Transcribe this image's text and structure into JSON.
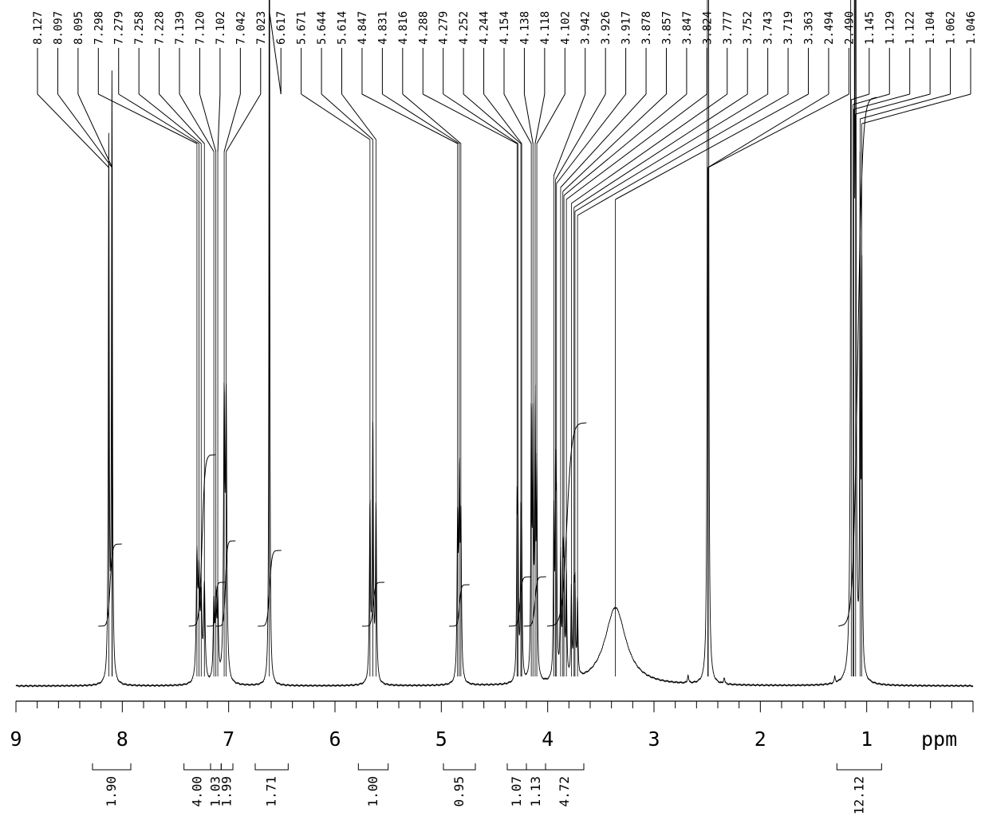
{
  "chart_data": {
    "type": "line",
    "x_unit_label": "ppm",
    "x_axis": {
      "range": [
        9.0,
        0.0
      ],
      "reversed": true,
      "major_ticks": [
        9,
        8,
        7,
        6,
        5,
        4,
        3,
        2,
        1
      ],
      "minor_step": 0.2
    },
    "grid": false,
    "peak_labels": [
      "8.127",
      "8.097",
      "8.095",
      "7.298",
      "7.279",
      "7.258",
      "7.228",
      "7.139",
      "7.120",
      "7.102",
      "7.042",
      "7.023",
      "6.617",
      "5.671",
      "5.644",
      "5.614",
      "4.847",
      "4.831",
      "4.816",
      "4.288",
      "4.279",
      "4.252",
      "4.244",
      "4.154",
      "4.138",
      "4.118",
      "4.102",
      "3.942",
      "3.926",
      "3.917",
      "3.878",
      "3.857",
      "3.847",
      "3.824",
      "3.777",
      "3.752",
      "3.743",
      "3.719",
      "3.363",
      "2.494",
      "2.490",
      "1.145",
      "1.129",
      "1.122",
      "1.104",
      "1.062",
      "1.046"
    ],
    "integrals": [
      {
        "from": 8.28,
        "to": 7.92,
        "value": "1.90"
      },
      {
        "from": 7.42,
        "to": 7.17,
        "value": "4.00"
      },
      {
        "from": 7.17,
        "to": 7.07,
        "value": "1.03"
      },
      {
        "from": 7.07,
        "to": 6.96,
        "value": "1.99"
      },
      {
        "from": 6.75,
        "to": 6.44,
        "value": "1.71"
      },
      {
        "from": 5.78,
        "to": 5.5,
        "value": "1.00"
      },
      {
        "from": 4.98,
        "to": 4.68,
        "value": "0.95"
      },
      {
        "from": 4.38,
        "to": 4.2,
        "value": "1.07"
      },
      {
        "from": 4.2,
        "to": 4.02,
        "value": "1.13"
      },
      {
        "from": 4.02,
        "to": 3.66,
        "value": "4.72"
      },
      {
        "from": 1.28,
        "to": 0.86,
        "value": "12.12"
      }
    ]
  }
}
